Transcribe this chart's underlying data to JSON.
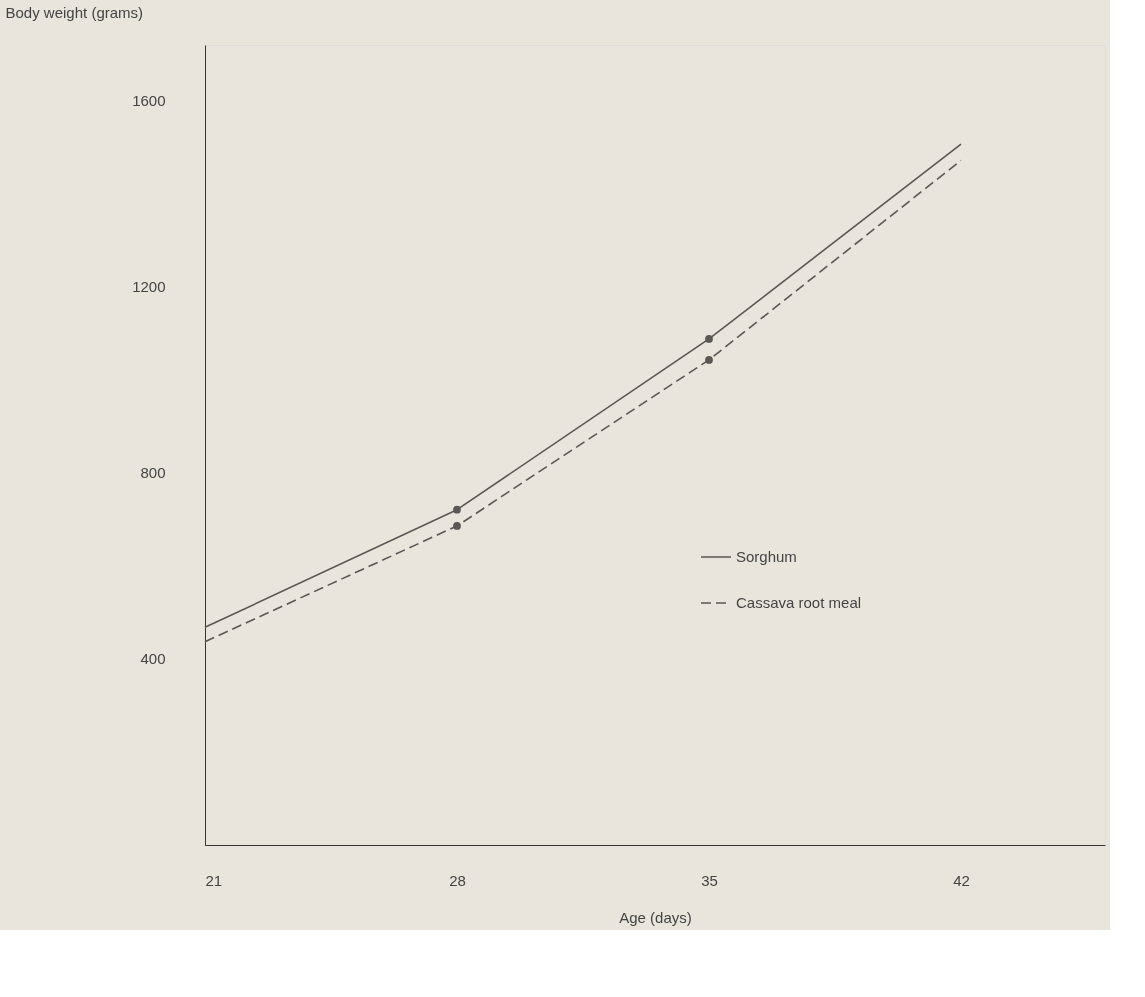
{
  "chart_data": {
    "type": "line",
    "xlabel": "Age (days)",
    "ylabel": "Body weight (grams)",
    "xlim": [
      21,
      46
    ],
    "ylim": [
      0,
      1720
    ],
    "xticks": [
      21,
      28,
      35,
      42
    ],
    "yticks": [
      400,
      800,
      1200,
      1600
    ],
    "grid": false,
    "legend": "right",
    "series": [
      {
        "name": "Sorghum",
        "color": "#5a5754",
        "line_style": "solid",
        "x": [
          21,
          28,
          35,
          42
        ],
        "values": [
          468,
          721,
          1088,
          1507
        ]
      },
      {
        "name": "Cassava root meal",
        "color": "#5a5754",
        "line_style": "dashed",
        "x": [
          21,
          28,
          35,
          42
        ],
        "values": [
          437,
          686,
          1043,
          1472
        ]
      },
      {
        "type": "scatter",
        "color": "#5a5754",
        "marker": "circle",
        "x": [
          28,
          28,
          35,
          35
        ],
        "values": [
          721,
          686,
          1088,
          1043
        ]
      }
    ]
  }
}
